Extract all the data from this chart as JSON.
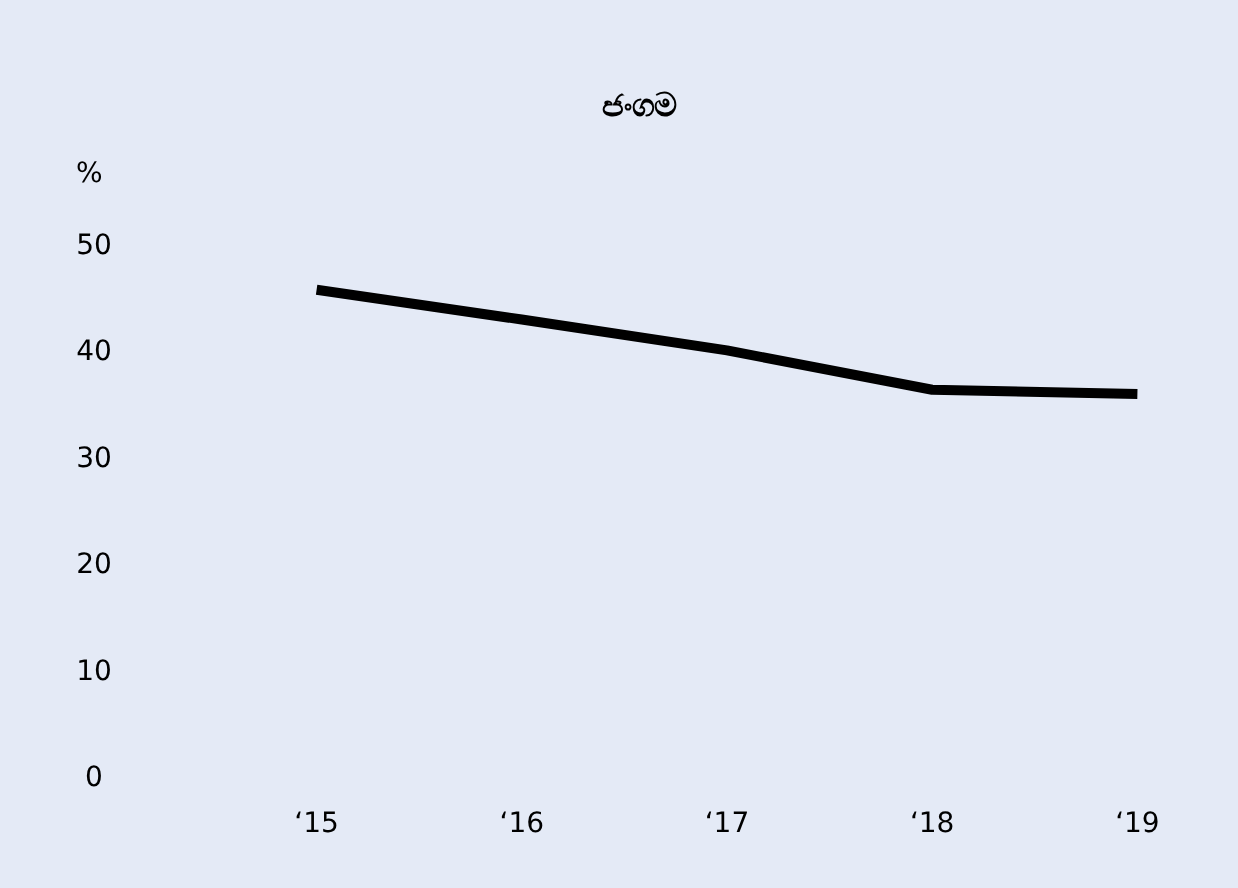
{
  "chart_data": {
    "type": "line",
    "title": "ජංගම",
    "ylabel": "%",
    "categories": [
      "‘15",
      "‘16",
      "‘17",
      "‘18",
      "‘19"
    ],
    "series": [
      {
        "color": "#000000",
        "values": [
          45.7,
          42.9,
          40.0,
          36.3,
          35.9
        ]
      }
    ],
    "ylim": [
      0,
      50
    ],
    "yticks": [
      0,
      10,
      20,
      30,
      40,
      50
    ],
    "grid": false,
    "marker": "none",
    "line_style": "solid"
  }
}
